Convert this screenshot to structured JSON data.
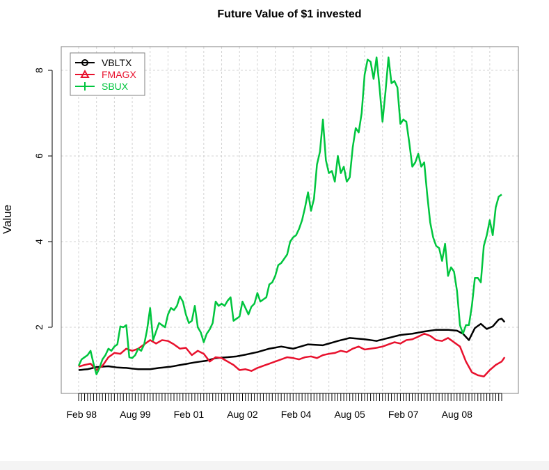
{
  "chart_data": {
    "type": "line",
    "title": "Future Value of $1 invested",
    "xlabel": "",
    "ylabel": "Value",
    "ylim": [
      0.4,
      8.9
    ],
    "yticks": [
      2,
      4,
      6,
      8
    ],
    "x_tick_labels": [
      "Feb 98",
      "Aug 99",
      "Feb 01",
      "Aug 02",
      "Feb 04",
      "Aug 05",
      "Feb 07",
      "Aug 08"
    ],
    "x_tick_label_index": [
      1,
      19,
      37,
      55,
      73,
      91,
      109,
      127
    ],
    "n_points": 143,
    "grid": true,
    "legend_position": "top-left",
    "legend": [
      "VBLTX",
      "FMAGX",
      "SBUX"
    ],
    "series": [
      {
        "name": "VBLTX",
        "color": "#000000",
        "anchors": [
          [
            0,
            1.0
          ],
          [
            3,
            1.02
          ],
          [
            6,
            1.07
          ],
          [
            10,
            1.09
          ],
          [
            13,
            1.06
          ],
          [
            16,
            1.05
          ],
          [
            20,
            1.02
          ],
          [
            24,
            1.02
          ],
          [
            27,
            1.05
          ],
          [
            31,
            1.08
          ],
          [
            35,
            1.13
          ],
          [
            39,
            1.18
          ],
          [
            43,
            1.22
          ],
          [
            46,
            1.28
          ],
          [
            50,
            1.3
          ],
          [
            53,
            1.32
          ],
          [
            56,
            1.36
          ],
          [
            60,
            1.42
          ],
          [
            64,
            1.5
          ],
          [
            68,
            1.55
          ],
          [
            72,
            1.5
          ],
          [
            77,
            1.6
          ],
          [
            82,
            1.58
          ],
          [
            87,
            1.68
          ],
          [
            91,
            1.75
          ],
          [
            96,
            1.72
          ],
          [
            100,
            1.68
          ],
          [
            104,
            1.75
          ],
          [
            108,
            1.82
          ],
          [
            112,
            1.85
          ],
          [
            116,
            1.9
          ],
          [
            120,
            1.94
          ],
          [
            124,
            1.94
          ],
          [
            127,
            1.92
          ],
          [
            129,
            1.85
          ],
          [
            131,
            1.7
          ],
          [
            133,
            1.98
          ],
          [
            135,
            2.08
          ],
          [
            137,
            1.96
          ],
          [
            139,
            2.02
          ],
          [
            141,
            2.18
          ],
          [
            142,
            2.2
          ],
          [
            143,
            2.12
          ]
        ]
      },
      {
        "name": "FMAGX",
        "color": "#e8112d",
        "anchors": [
          [
            0,
            1.08
          ],
          [
            2,
            1.12
          ],
          [
            4,
            1.15
          ],
          [
            6,
            1.0
          ],
          [
            8,
            1.1
          ],
          [
            10,
            1.3
          ],
          [
            12,
            1.4
          ],
          [
            14,
            1.38
          ],
          [
            16,
            1.5
          ],
          [
            18,
            1.45
          ],
          [
            20,
            1.5
          ],
          [
            22,
            1.6
          ],
          [
            24,
            1.7
          ],
          [
            26,
            1.62
          ],
          [
            28,
            1.7
          ],
          [
            30,
            1.68
          ],
          [
            32,
            1.6
          ],
          [
            34,
            1.5
          ],
          [
            36,
            1.52
          ],
          [
            38,
            1.35
          ],
          [
            40,
            1.45
          ],
          [
            42,
            1.38
          ],
          [
            44,
            1.2
          ],
          [
            46,
            1.3
          ],
          [
            48,
            1.28
          ],
          [
            50,
            1.2
          ],
          [
            52,
            1.12
          ],
          [
            54,
            1.0
          ],
          [
            56,
            1.02
          ],
          [
            58,
            0.98
          ],
          [
            60,
            1.05
          ],
          [
            62,
            1.1
          ],
          [
            64,
            1.15
          ],
          [
            66,
            1.2
          ],
          [
            68,
            1.25
          ],
          [
            70,
            1.3
          ],
          [
            72,
            1.28
          ],
          [
            74,
            1.25
          ],
          [
            76,
            1.3
          ],
          [
            78,
            1.32
          ],
          [
            80,
            1.28
          ],
          [
            82,
            1.35
          ],
          [
            84,
            1.38
          ],
          [
            86,
            1.4
          ],
          [
            88,
            1.45
          ],
          [
            90,
            1.42
          ],
          [
            92,
            1.5
          ],
          [
            94,
            1.55
          ],
          [
            96,
            1.48
          ],
          [
            98,
            1.5
          ],
          [
            100,
            1.52
          ],
          [
            102,
            1.55
          ],
          [
            104,
            1.6
          ],
          [
            106,
            1.65
          ],
          [
            108,
            1.62
          ],
          [
            110,
            1.7
          ],
          [
            112,
            1.72
          ],
          [
            114,
            1.78
          ],
          [
            116,
            1.85
          ],
          [
            118,
            1.8
          ],
          [
            120,
            1.7
          ],
          [
            122,
            1.68
          ],
          [
            124,
            1.75
          ],
          [
            126,
            1.65
          ],
          [
            128,
            1.55
          ],
          [
            130,
            1.2
          ],
          [
            132,
            0.95
          ],
          [
            134,
            0.88
          ],
          [
            136,
            0.85
          ],
          [
            138,
            1.0
          ],
          [
            140,
            1.12
          ],
          [
            142,
            1.2
          ],
          [
            143,
            1.3
          ]
        ]
      },
      {
        "name": "SBUX",
        "color": "#00c53e",
        "anchors": [
          [
            0,
            1.1
          ],
          [
            1,
            1.25
          ],
          [
            2,
            1.3
          ],
          [
            3,
            1.35
          ],
          [
            4,
            1.45
          ],
          [
            5,
            1.15
          ],
          [
            6,
            0.9
          ],
          [
            7,
            1.05
          ],
          [
            8,
            1.25
          ],
          [
            9,
            1.35
          ],
          [
            10,
            1.5
          ],
          [
            11,
            1.45
          ],
          [
            12,
            1.55
          ],
          [
            13,
            1.6
          ],
          [
            14,
            2.02
          ],
          [
            15,
            2.0
          ],
          [
            16,
            2.05
          ],
          [
            17,
            1.3
          ],
          [
            18,
            1.28
          ],
          [
            19,
            1.35
          ],
          [
            20,
            1.5
          ],
          [
            21,
            1.45
          ],
          [
            22,
            1.6
          ],
          [
            23,
            1.95
          ],
          [
            24,
            2.45
          ],
          [
            25,
            1.7
          ],
          [
            26,
            1.9
          ],
          [
            27,
            2.1
          ],
          [
            28,
            2.05
          ],
          [
            29,
            2.0
          ],
          [
            30,
            2.3
          ],
          [
            31,
            2.45
          ],
          [
            32,
            2.4
          ],
          [
            33,
            2.5
          ],
          [
            34,
            2.72
          ],
          [
            35,
            2.6
          ],
          [
            36,
            2.3
          ],
          [
            37,
            2.1
          ],
          [
            38,
            2.15
          ],
          [
            39,
            2.5
          ],
          [
            40,
            2.0
          ],
          [
            41,
            1.88
          ],
          [
            42,
            1.65
          ],
          [
            43,
            1.85
          ],
          [
            44,
            1.95
          ],
          [
            45,
            2.1
          ],
          [
            46,
            2.6
          ],
          [
            47,
            2.5
          ],
          [
            48,
            2.55
          ],
          [
            49,
            2.5
          ],
          [
            50,
            2.62
          ],
          [
            51,
            2.7
          ],
          [
            52,
            2.15
          ],
          [
            53,
            2.2
          ],
          [
            54,
            2.25
          ],
          [
            55,
            2.6
          ],
          [
            56,
            2.45
          ],
          [
            57,
            2.3
          ],
          [
            58,
            2.48
          ],
          [
            59,
            2.55
          ],
          [
            60,
            2.8
          ],
          [
            61,
            2.6
          ],
          [
            62,
            2.65
          ],
          [
            63,
            2.7
          ],
          [
            64,
            3.0
          ],
          [
            65,
            3.05
          ],
          [
            66,
            3.2
          ],
          [
            67,
            3.45
          ],
          [
            68,
            3.5
          ],
          [
            69,
            3.6
          ],
          [
            70,
            3.7
          ],
          [
            71,
            4.0
          ],
          [
            72,
            4.1
          ],
          [
            73,
            4.15
          ],
          [
            74,
            4.3
          ],
          [
            75,
            4.5
          ],
          [
            76,
            4.8
          ],
          [
            77,
            5.15
          ],
          [
            78,
            4.72
          ],
          [
            79,
            5.0
          ],
          [
            80,
            5.8
          ],
          [
            81,
            6.1
          ],
          [
            82,
            6.85
          ],
          [
            83,
            5.9
          ],
          [
            84,
            5.6
          ],
          [
            85,
            5.65
          ],
          [
            86,
            5.4
          ],
          [
            87,
            6.0
          ],
          [
            88,
            5.6
          ],
          [
            89,
            5.75
          ],
          [
            90,
            5.4
          ],
          [
            91,
            5.5
          ],
          [
            92,
            6.2
          ],
          [
            93,
            6.65
          ],
          [
            94,
            6.55
          ],
          [
            95,
            7.0
          ],
          [
            96,
            7.9
          ],
          [
            97,
            8.25
          ],
          [
            98,
            8.2
          ],
          [
            99,
            7.8
          ],
          [
            100,
            8.3
          ],
          [
            101,
            7.6
          ],
          [
            102,
            6.8
          ],
          [
            103,
            7.5
          ],
          [
            104,
            8.3
          ],
          [
            105,
            7.7
          ],
          [
            106,
            7.75
          ],
          [
            107,
            7.6
          ],
          [
            108,
            6.75
          ],
          [
            109,
            6.85
          ],
          [
            110,
            6.8
          ],
          [
            111,
            6.3
          ],
          [
            112,
            5.75
          ],
          [
            113,
            5.85
          ],
          [
            114,
            6.05
          ],
          [
            115,
            5.75
          ],
          [
            116,
            5.85
          ],
          [
            117,
            5.1
          ],
          [
            118,
            4.45
          ],
          [
            119,
            4.1
          ],
          [
            120,
            3.9
          ],
          [
            121,
            3.85
          ],
          [
            122,
            3.55
          ],
          [
            123,
            3.95
          ],
          [
            124,
            3.2
          ],
          [
            125,
            3.4
          ],
          [
            126,
            3.3
          ],
          [
            127,
            2.85
          ],
          [
            128,
            2.05
          ],
          [
            129,
            1.85
          ],
          [
            130,
            2.05
          ],
          [
            131,
            2.05
          ],
          [
            132,
            2.5
          ],
          [
            133,
            3.15
          ],
          [
            134,
            3.15
          ],
          [
            135,
            3.05
          ],
          [
            136,
            3.9
          ],
          [
            137,
            4.15
          ],
          [
            138,
            4.5
          ],
          [
            139,
            4.15
          ],
          [
            140,
            4.8
          ],
          [
            141,
            5.05
          ],
          [
            142,
            5.1
          ]
        ]
      }
    ]
  }
}
